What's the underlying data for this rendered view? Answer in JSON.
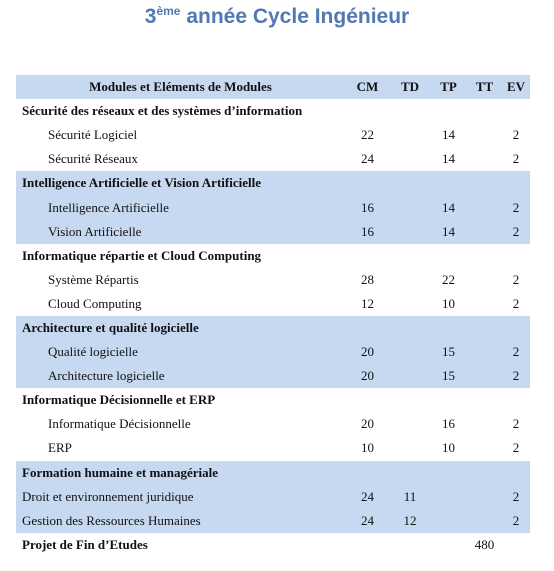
{
  "title": {
    "number": "3",
    "superscript": "ème",
    "text": "année Cycle Ingénieur"
  },
  "table": {
    "header": [
      "Modules et Eléments de Modules",
      "CM",
      "TD",
      "TP",
      "TT",
      "EV"
    ],
    "groups": [
      {
        "title": "Sécurité des réseaux et des systèmes d’information",
        "items": [
          {
            "label": "Sécurité Logiciel",
            "cm": "22",
            "tp": "14",
            "ev": "2"
          },
          {
            "label": "Sécurité Réseaux",
            "cm": "24",
            "tp": "14",
            "ev": "2"
          }
        ]
      },
      {
        "title": "Intelligence Artificielle et Vision Artificielle",
        "items": [
          {
            "label": "Intelligence Artificielle",
            "cm": "16",
            "tp": "14",
            "ev": "2"
          },
          {
            "label": "Vision Artificielle",
            "cm": "16",
            "tp": "14",
            "ev": "2"
          }
        ]
      },
      {
        "title": "Informatique répartie et Cloud Computing",
        "items": [
          {
            "label": "Système Répartis",
            "cm": "28",
            "tp": "22",
            "ev": "2"
          },
          {
            "label": "Cloud Computing",
            "cm": "12",
            "tp": "10",
            "ev": "2"
          }
        ]
      },
      {
        "title": "Architecture et qualité logicielle",
        "items": [
          {
            "label": "Qualité logicielle",
            "cm": "20",
            "tp": "15",
            "ev": "2"
          },
          {
            "label": "Architecture logicielle",
            "cm": "20",
            "tp": "15",
            "ev": "2"
          }
        ]
      },
      {
        "title": "Informatique Décisionnelle et ERP",
        "items": [
          {
            "label": "Informatique Décisionnelle",
            "cm": "20",
            "tp": "16",
            "ev": "2"
          },
          {
            "label": "ERP",
            "cm": "10",
            "tp": "10",
            "ev": "2"
          }
        ]
      },
      {
        "title": "Formation humaine et managériale",
        "items": [
          {
            "label": "Droit et environnement juridique",
            "cm": "24",
            "td": "11",
            "ev": "2"
          },
          {
            "label": "Gestion des Ressources Humaines",
            "cm": "24",
            "td": "12",
            "ev": "2"
          }
        ]
      }
    ],
    "footer": {
      "label": "Projet de Fin d’Etudes",
      "tt": "480"
    }
  }
}
